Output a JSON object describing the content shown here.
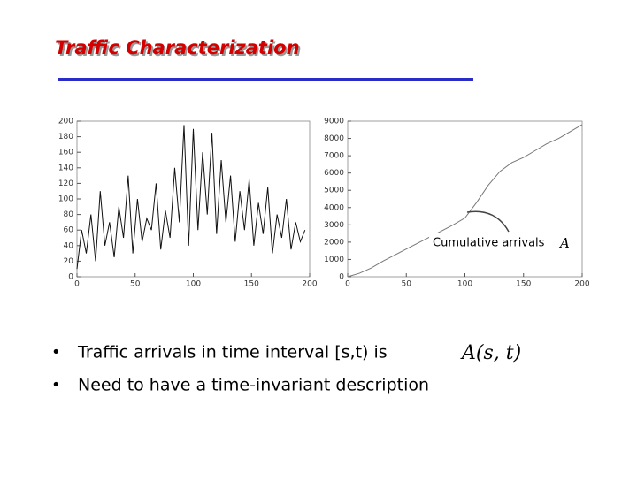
{
  "title": "Traffic Characterization",
  "annotation": {
    "text": "Cumulative arrivals",
    "math": "A"
  },
  "bullets": [
    {
      "text": "Traffic arrivals in time interval [s,t) is",
      "math": "A(s, t)"
    },
    {
      "text": "Need to have a time-invariant description"
    }
  ],
  "chart_data": [
    {
      "type": "line",
      "color": "#111111",
      "x": [
        0,
        4,
        8,
        12,
        16,
        20,
        24,
        28,
        32,
        36,
        40,
        44,
        48,
        52,
        56,
        60,
        64,
        68,
        72,
        76,
        80,
        84,
        88,
        92,
        96,
        100,
        104,
        108,
        112,
        116,
        120,
        124,
        128,
        132,
        136,
        140,
        144,
        148,
        152,
        156,
        160,
        164,
        168,
        172,
        176,
        180,
        184,
        188,
        192,
        196
      ],
      "values": [
        10,
        60,
        30,
        80,
        20,
        110,
        40,
        70,
        25,
        90,
        50,
        130,
        30,
        100,
        45,
        75,
        60,
        120,
        35,
        85,
        50,
        140,
        70,
        195,
        40,
        190,
        60,
        160,
        80,
        185,
        55,
        150,
        70,
        130,
        45,
        110,
        60,
        125,
        40,
        95,
        55,
        115,
        30,
        80,
        50,
        100,
        35,
        70,
        45,
        60
      ],
      "xlim": [
        0,
        200
      ],
      "ylim": [
        0,
        200
      ],
      "xticks": [
        0,
        50,
        100,
        150,
        200
      ],
      "yticks": [
        0,
        20,
        40,
        60,
        80,
        100,
        120,
        140,
        160,
        180,
        200
      ]
    },
    {
      "type": "line",
      "color": "#777777",
      "x": [
        0,
        10,
        20,
        30,
        50,
        70,
        90,
        100,
        110,
        120,
        130,
        140,
        150,
        160,
        170,
        180,
        190,
        200
      ],
      "values": [
        0,
        200,
        500,
        900,
        1600,
        2300,
        3000,
        3400,
        4300,
        5300,
        6100,
        6600,
        6900,
        7300,
        7700,
        8000,
        8400,
        8800
      ],
      "xlim": [
        0,
        200
      ],
      "ylim": [
        0,
        9000
      ],
      "xticks": [
        0,
        50,
        100,
        150,
        200
      ],
      "yticks": [
        0,
        1000,
        2000,
        3000,
        4000,
        5000,
        6000,
        7000,
        8000,
        9000
      ]
    }
  ]
}
